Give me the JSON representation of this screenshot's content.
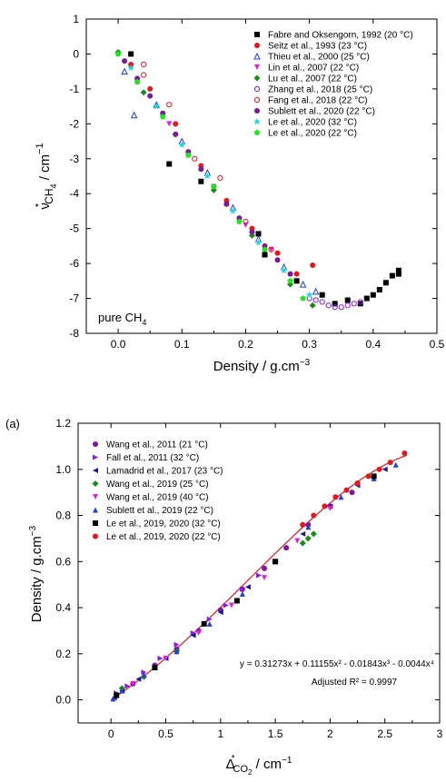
{
  "chart_data": [
    {
      "type": "scatter",
      "title": "",
      "xlabel": "Density / g.cm",
      "xlabel_sup": "−3",
      "ylabel_main": "ν",
      "ylabel_star": "*",
      "ylabel_sub": "CH",
      "ylabel_subsub": "4",
      "ylabel_tail": " / cm",
      "ylabel_sup": "−1",
      "xlim": [
        -0.05,
        0.5
      ],
      "ylim": [
        -8,
        1
      ],
      "xticks": [
        "0.0",
        "0.1",
        "0.2",
        "0.3",
        "0.4",
        "0.5"
      ],
      "yticks": [
        "1",
        "0",
        "-1",
        "-2",
        "-3",
        "-4",
        "-5",
        "-6",
        "-7",
        "-8"
      ],
      "annotation_main": "pure CH",
      "annotation_sub": "4",
      "legend_position": "top-right",
      "grid": false,
      "series": [
        {
          "name": "Fabre and Oksengorn, 1992 (20 °C)",
          "marker": "square",
          "color": "#000000",
          "x": [
            0.02,
            0.08,
            0.13,
            0.22,
            0.23,
            0.28,
            0.32,
            0.34,
            0.36,
            0.38,
            0.39,
            0.4,
            0.41,
            0.42,
            0.43,
            0.44,
            0.44
          ],
          "y": [
            0.0,
            -3.15,
            -3.65,
            -5.15,
            -5.75,
            -6.5,
            -6.9,
            -7.15,
            -7.05,
            -7.15,
            -7.0,
            -6.9,
            -6.75,
            -6.55,
            -6.35,
            -6.2,
            -6.3
          ]
        },
        {
          "name": "Seitz et al., 1993 (23 °C)",
          "marker": "circle",
          "color": "#e8141c",
          "x": [
            0.02,
            0.05,
            0.09,
            0.13,
            0.17,
            0.21,
            0.25,
            0.28,
            0.305
          ],
          "y": [
            -0.3,
            -1.0,
            -2.0,
            -3.2,
            -4.2,
            -5.0,
            -5.7,
            -6.3,
            -6.05
          ]
        },
        {
          "name": "Thieu et al., 2000 (25 °C)",
          "marker": "triangle-up-open",
          "color": "#1f3fd6",
          "x": [
            0.01,
            0.025,
            0.06,
            0.1,
            0.14,
            0.18,
            0.22,
            0.26,
            0.29,
            0.31
          ],
          "y": [
            -0.5,
            -1.75,
            -1.45,
            -2.5,
            -3.4,
            -4.4,
            -5.3,
            -6.1,
            -6.6,
            -6.8
          ]
        },
        {
          "name": "Lin et al., 2007 (22 °C)",
          "marker": "triangle-down",
          "color": "#e01fe0",
          "x": [
            0.03,
            0.08,
            0.15,
            0.2,
            0.24
          ],
          "y": [
            -0.8,
            -2.0,
            -3.8,
            -4.9,
            -5.6
          ]
        },
        {
          "name": "Lu et al., 2007 (22 °C)",
          "marker": "diamond",
          "color": "#1a8a1a",
          "x": [
            0.0,
            0.04,
            0.09,
            0.15,
            0.21,
            0.27,
            0.305
          ],
          "y": [
            0.05,
            -1.1,
            -2.3,
            -3.9,
            -5.2,
            -6.6,
            -7.2
          ]
        },
        {
          "name": "Zhang et al., 2018 (25 °C)",
          "marker": "circle-open",
          "color": "#8a1ae8",
          "x": [
            0.3,
            0.31,
            0.32,
            0.33,
            0.34,
            0.35,
            0.36,
            0.37,
            0.38
          ],
          "y": [
            -7.0,
            -7.05,
            -7.1,
            -7.2,
            -7.25,
            -7.25,
            -7.2,
            -7.15,
            -7.1
          ]
        },
        {
          "name": "Fang et al., 2018 (22 °C)",
          "marker": "circle-open",
          "color": "#e8141c",
          "x": [
            0.04,
            0.04,
            0.08,
            0.12,
            0.16,
            0.2,
            0.24
          ],
          "y": [
            -0.3,
            -0.6,
            -1.45,
            -3.0,
            -3.55,
            -4.8,
            -5.6
          ]
        },
        {
          "name": "Sublett et al., 2020 (22 °C)",
          "marker": "circle",
          "color": "#7a1a9a",
          "x": [
            0.01,
            0.03,
            0.05,
            0.07,
            0.09,
            0.11,
            0.13,
            0.15,
            0.17,
            0.19,
            0.21,
            0.23,
            0.25,
            0.27
          ],
          "y": [
            -0.2,
            -0.7,
            -1.2,
            -1.7,
            -2.3,
            -2.8,
            -3.3,
            -3.8,
            -4.3,
            -4.7,
            -5.1,
            -5.5,
            -5.9,
            -6.3
          ]
        },
        {
          "name": "Le et al., 2020 (32 °C)",
          "marker": "star",
          "color": "#1fd6e8",
          "x": [
            0.02,
            0.06,
            0.1,
            0.14,
            0.18,
            0.22,
            0.26,
            0.3
          ],
          "y": [
            -0.4,
            -1.5,
            -2.6,
            -3.5,
            -4.5,
            -5.4,
            -6.2,
            -6.9
          ]
        },
        {
          "name": "Le et al., 2020 (22 °C)",
          "marker": "pentagon",
          "color": "#1ae81a",
          "x": [
            0.0,
            0.03,
            0.07,
            0.11,
            0.15,
            0.19,
            0.23,
            0.27,
            0.29
          ],
          "y": [
            0.0,
            -0.8,
            -1.8,
            -2.9,
            -3.8,
            -4.8,
            -5.6,
            -6.5,
            -7.0
          ]
        }
      ]
    },
    {
      "type": "scatter",
      "title": "",
      "panel_label": "(a)",
      "xlabel_main": "Δ",
      "xlabel_star": "*",
      "xlabel_sub": "CO",
      "xlabel_subsub": "2",
      "xlabel_tail": " / cm",
      "xlabel_sup": "−1",
      "ylabel": "Density / g.cm",
      "ylabel_sup": "−3",
      "xlim": [
        -0.3,
        3
      ],
      "ylim": [
        -0.1,
        1.2
      ],
      "xticks": [
        "0",
        "0.5",
        "1",
        "1.5",
        "2",
        "2.5",
        "3"
      ],
      "yticks": [
        "0.0",
        "0.2",
        "0.4",
        "0.6",
        "0.8",
        "1.0",
        "1.2"
      ],
      "legend_position": "top-left",
      "grid": false,
      "fit_equation": "y = 0.31273x + 0.11155x² - 0.01843x³ - 0.0044x⁴",
      "fit_r2": "Adjusted R² = 0.9997",
      "fit_coefficients": [
        0,
        0.31273,
        0.11155,
        -0.01843,
        -0.0044
      ],
      "fit_color": "#e8141c",
      "series": [
        {
          "name": "Wang et al., 2011 (21 °C)",
          "marker": "circle",
          "color": "#7a1a9a",
          "x": [
            0.05,
            0.2,
            0.4,
            0.6,
            0.8,
            1.0,
            1.2,
            1.4,
            1.6,
            1.8,
            2.0,
            2.2
          ],
          "y": [
            0.02,
            0.07,
            0.15,
            0.22,
            0.3,
            0.39,
            0.48,
            0.57,
            0.66,
            0.76,
            0.84,
            0.9
          ]
        },
        {
          "name": "Fall et al., 2011 (32 °C)",
          "marker": "triangle-right",
          "color": "#8a1ae8",
          "x": [
            0.05,
            0.15,
            0.3,
            0.45,
            0.6,
            0.75,
            0.9,
            1.05,
            1.2,
            1.35,
            1.5
          ],
          "y": [
            0.03,
            0.06,
            0.12,
            0.18,
            0.24,
            0.29,
            0.35,
            0.41,
            0.48,
            0.54,
            0.6
          ]
        },
        {
          "name": "Lamadrid et al., 2017 (23 °C)",
          "marker": "triangle-left",
          "color": "#1a1a9a",
          "x": [
            0.03,
            0.1,
            0.25,
            0.5,
            0.75,
            1.0,
            1.25,
            1.5,
            1.75,
            2.0,
            2.25,
            2.5
          ],
          "y": [
            0.01,
            0.04,
            0.09,
            0.18,
            0.28,
            0.38,
            0.49,
            0.6,
            0.72,
            0.84,
            0.93,
            1.0
          ]
        },
        {
          "name": "Wang et al., 2019 (25 °C)",
          "marker": "diamond",
          "color": "#1a8a1a",
          "x": [
            0.1,
            0.3,
            0.6,
            1.75,
            1.8,
            1.85
          ],
          "y": [
            0.05,
            0.1,
            0.21,
            0.68,
            0.7,
            0.72
          ]
        },
        {
          "name": "Wang et al., 2019 (40 °C)",
          "marker": "triangle-down",
          "color": "#e01fe0",
          "x": [
            0.2,
            0.5,
            0.8,
            1.1,
            1.4,
            1.7,
            2.0
          ],
          "y": [
            0.07,
            0.18,
            0.29,
            0.41,
            0.53,
            0.69,
            0.83
          ]
        },
        {
          "name": "Sublett et al., 2019 (22 °C)",
          "marker": "triangle-up",
          "color": "#1f3fd6",
          "x": [
            0.02,
            0.1,
            0.3,
            0.6,
            0.9,
            1.2,
            1.5,
            1.8,
            2.1,
            2.4,
            2.6
          ],
          "y": [
            0.005,
            0.04,
            0.11,
            0.21,
            0.33,
            0.46,
            0.6,
            0.75,
            0.88,
            0.96,
            1.02
          ]
        },
        {
          "name": "Le et al., 2019, 2020 (32 °C)",
          "marker": "square",
          "color": "#000000",
          "x": [
            0.05,
            0.4,
            0.85,
            1.15,
            1.5,
            2.4
          ],
          "y": [
            0.02,
            0.14,
            0.33,
            0.43,
            0.6,
            0.97
          ]
        },
        {
          "name": "Le et al., 2019, 2020 (22 °C)",
          "marker": "circle",
          "color": "#e8141c",
          "x": [
            1.75,
            1.85,
            1.95,
            2.05,
            2.15,
            2.25,
            2.35,
            2.45,
            2.55,
            2.68
          ],
          "y": [
            0.76,
            0.8,
            0.84,
            0.88,
            0.91,
            0.94,
            0.97,
            1.0,
            1.03,
            1.07
          ]
        }
      ]
    }
  ]
}
